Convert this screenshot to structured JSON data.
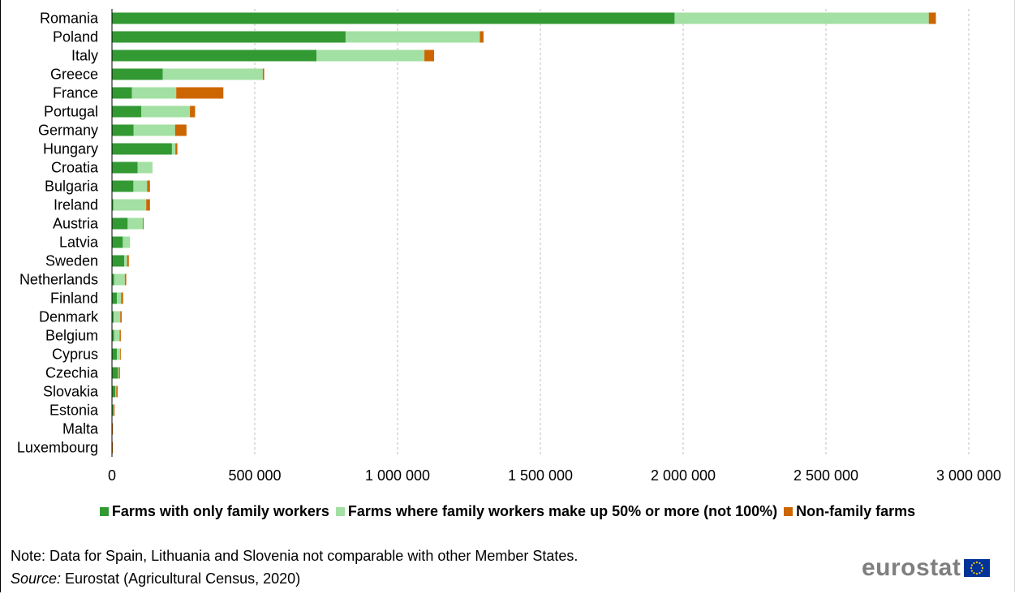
{
  "chart_data": {
    "type": "bar",
    "orientation": "horizontal",
    "stacked": true,
    "categories": [
      "Romania",
      "Poland",
      "Italy",
      "Greece",
      "France",
      "Portugal",
      "Germany",
      "Hungary",
      "Croatia",
      "Bulgaria",
      "Ireland",
      "Austria",
      "Latvia",
      "Sweden",
      "Netherlands",
      "Finland",
      "Denmark",
      "Belgium",
      "Cyprus",
      "Czechia",
      "Slovakia",
      "Estonia",
      "Malta",
      "Luxembourg"
    ],
    "series": [
      {
        "name": "Farms with only family workers",
        "color": "#339933",
        "values": [
          1970000,
          818000,
          716000,
          178000,
          70000,
          103000,
          76000,
          210000,
          90000,
          75000,
          5000,
          55000,
          38000,
          43000,
          8000,
          17000,
          6000,
          7000,
          17000,
          21000,
          12000,
          4000,
          400,
          300
        ]
      },
      {
        "name": "Farms where family workers make up 50% or more (not 100%)",
        "color": "#a3e0a3",
        "values": [
          890000,
          470000,
          378000,
          350000,
          155000,
          170000,
          145000,
          12000,
          52000,
          48000,
          115000,
          53000,
          25000,
          10000,
          37000,
          15000,
          23000,
          20000,
          12000,
          3000,
          3000,
          1000,
          700,
          500
        ]
      },
      {
        "name": "Non-family farms",
        "color": "#cc6600",
        "values": [
          25000,
          13000,
          34000,
          5000,
          165000,
          18000,
          40000,
          7000,
          0,
          10000,
          13000,
          3000,
          0,
          6000,
          5000,
          7000,
          5000,
          4000,
          1000,
          4000,
          5000,
          4000,
          300,
          300
        ]
      }
    ],
    "xlim": [
      0,
      3000000
    ],
    "xticks": [
      0,
      500000,
      1000000,
      1500000,
      2000000,
      2500000,
      3000000
    ],
    "xtick_labels": [
      "0",
      "500 000",
      "1 000 000",
      "1 500 000",
      "2 000 000",
      "2 500 000",
      "3 000 000"
    ],
    "grid": "vertical dashed",
    "legend_position": "bottom"
  },
  "legend": [
    {
      "label": "Farms with only family workers",
      "color": "#339933"
    },
    {
      "label": "Farms where family workers make up 50% or more (not 100%)",
      "color": "#a3e0a3"
    },
    {
      "label": "Non-family farms",
      "color": "#cc6600"
    }
  ],
  "note": "Note: Data for Spain, Lithuania  and Slovenia not comparable with other Member States.",
  "source": {
    "label": "Source:",
    "text": " Eurostat (Agricultural Census, 2020)"
  },
  "logo": {
    "text": "eurostat",
    "icon": "eu-flag-icon"
  }
}
